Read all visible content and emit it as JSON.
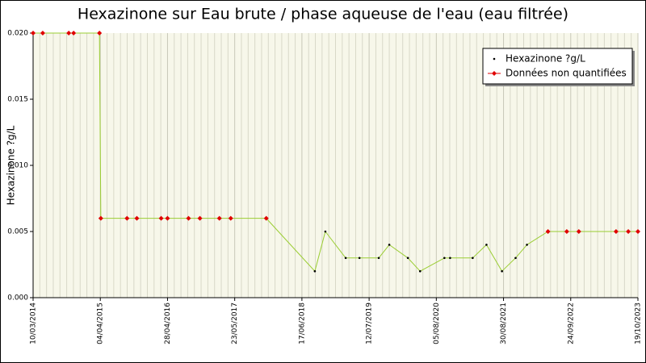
{
  "chart_data": {
    "type": "line",
    "title": "Hexazinone sur Eau brute / phase aqueuse de l'eau (eau filtrée)",
    "y_label": "Hexazinone ?g/L",
    "x": [
      "10/03/2014",
      "05/05/2014",
      "03/10/2014",
      "31/10/2014",
      "30/03/2015",
      "07/04/2015",
      "06/09/2015",
      "02/11/2015",
      "22/03/2016",
      "28/04/2016",
      "28/08/2016",
      "02/11/2016",
      "23/02/2017",
      "30/04/2017",
      "22/11/2017",
      "31/08/2018",
      "31/10/2018",
      "26/02/2019",
      "17/05/2019",
      "06/09/2019",
      "06/11/2019",
      "22/02/2020",
      "03/05/2020",
      "21/09/2020",
      "24/10/2020",
      "04/03/2021",
      "23/05/2021",
      "21/08/2021",
      "08/11/2021",
      "13/01/2022",
      "15/05/2022",
      "01/09/2022",
      "10/11/2022",
      "14/06/2023",
      "24/08/2023",
      "19/10/2023"
    ],
    "series": [
      {
        "name": "Hexazinone ?g/L",
        "color": "#000000",
        "line_color": "#9acd32",
        "values": [
          null,
          null,
          null,
          null,
          null,
          null,
          null,
          null,
          null,
          null,
          null,
          null,
          null,
          null,
          null,
          0.002,
          0.005,
          0.003,
          0.003,
          0.003,
          0.004,
          0.003,
          0.002,
          0.003,
          0.003,
          0.003,
          0.004,
          0.002,
          0.003,
          0.004,
          null,
          null,
          null,
          null,
          null,
          null
        ]
      },
      {
        "name": "Données non quantifiées",
        "color": "#e00000",
        "values": [
          0.02,
          0.02,
          0.02,
          0.02,
          0.02,
          0.006,
          0.006,
          0.006,
          0.006,
          0.006,
          0.006,
          0.006,
          0.006,
          0.006,
          0.006,
          null,
          null,
          null,
          null,
          null,
          null,
          null,
          null,
          null,
          null,
          null,
          null,
          null,
          null,
          null,
          0.005,
          0.005,
          0.005,
          0.005,
          0.005,
          0.005
        ]
      }
    ],
    "xlim": [
      "10/03/2014",
      "19/10/2023"
    ],
    "xticks": [
      "10/03/2014",
      "04/04/2015",
      "28/04/2016",
      "23/05/2017",
      "17/06/2018",
      "12/07/2019",
      "05/08/2020",
      "30/08/2021",
      "24/09/2022",
      "19/10/2023"
    ],
    "ylim": [
      0,
      0.02
    ],
    "yticks": [
      {
        "value": 0,
        "label": "0.000"
      },
      0.005,
      {
        "value": 0.01,
        "label": "0.010"
      },
      0.015,
      {
        "value": 0.02,
        "label": "0.020"
      }
    ],
    "grid": true,
    "legend": "upper right"
  }
}
